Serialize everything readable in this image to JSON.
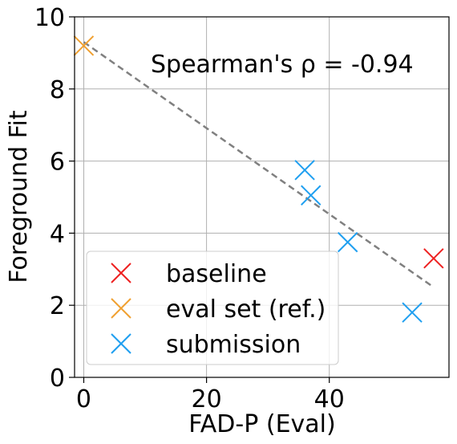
{
  "chart_data": {
    "type": "scatter",
    "title": "",
    "xlabel": "FAD-P (Eval)",
    "ylabel": "Foreground Fit",
    "xlim": [
      -1.5,
      59.5
    ],
    "ylim": [
      0,
      10
    ],
    "xticks": [
      0,
      20,
      40
    ],
    "yticks": [
      0,
      2,
      4,
      6,
      8,
      10
    ],
    "grid": true,
    "legend_position": "lower-left",
    "annotation": "Spearman's ρ = -0.94",
    "marker": "x",
    "series": [
      {
        "name": "baseline",
        "color": "#ee2222",
        "points": [
          [
            57.0,
            3.3
          ]
        ]
      },
      {
        "name": "eval set (ref.)",
        "color": "#f0a030",
        "points": [
          [
            0.0,
            9.2
          ]
        ]
      },
      {
        "name": "submission",
        "color": "#1f9ff0",
        "points": [
          [
            36.0,
            5.75
          ],
          [
            37.0,
            5.05
          ],
          [
            43.0,
            3.75
          ],
          [
            53.5,
            1.8
          ]
        ]
      }
    ],
    "trendline": {
      "style": "dashed",
      "color": "#808080",
      "points": [
        [
          0.0,
          9.3
        ],
        [
          57.0,
          2.5
        ]
      ]
    }
  }
}
